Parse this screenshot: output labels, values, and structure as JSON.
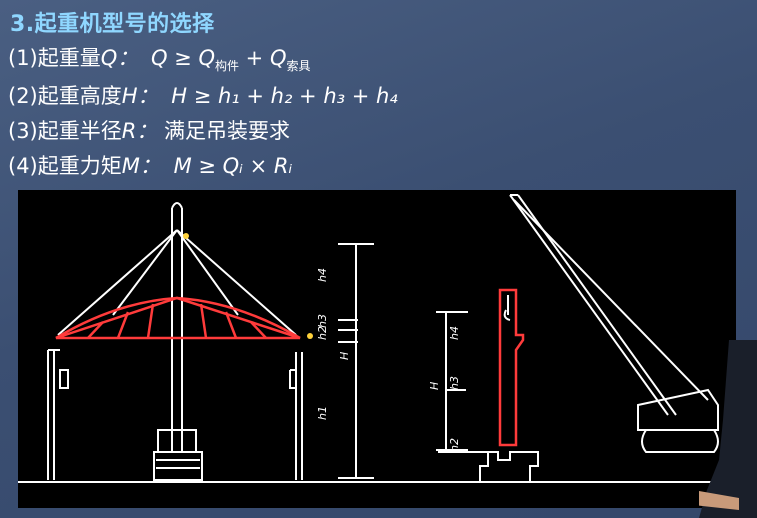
{
  "slide": {
    "title": "3.起重机型号的选择"
  },
  "formulas": [
    {
      "label": "(1)起重量",
      "var": "Q：",
      "expr": "Q ≥ Q",
      "sub1": "构件",
      "plus": " + Q",
      "sub2": "索具"
    },
    {
      "label": "(2)起重高度",
      "var": "H：",
      "expr": "H ≥ h₁ + h₂ + h₃ + h₄"
    },
    {
      "label": "(3)起重半径",
      "var": "R：",
      "expr": "满足吊装要求"
    },
    {
      "label": "(4)起重力矩",
      "var": "M：",
      "expr": "M ≥ Qᵢ × Rᵢ"
    }
  ],
  "diagram": {
    "left_labels": [
      "h4",
      "h3",
      "h2",
      "H",
      "h1"
    ],
    "right_labels": [
      "h4",
      "H",
      "h3",
      "h2"
    ]
  },
  "colors": {
    "title": "#8fd7ff",
    "member": "#ff3b3b",
    "line": "#ffffff",
    "background": "#000000"
  }
}
